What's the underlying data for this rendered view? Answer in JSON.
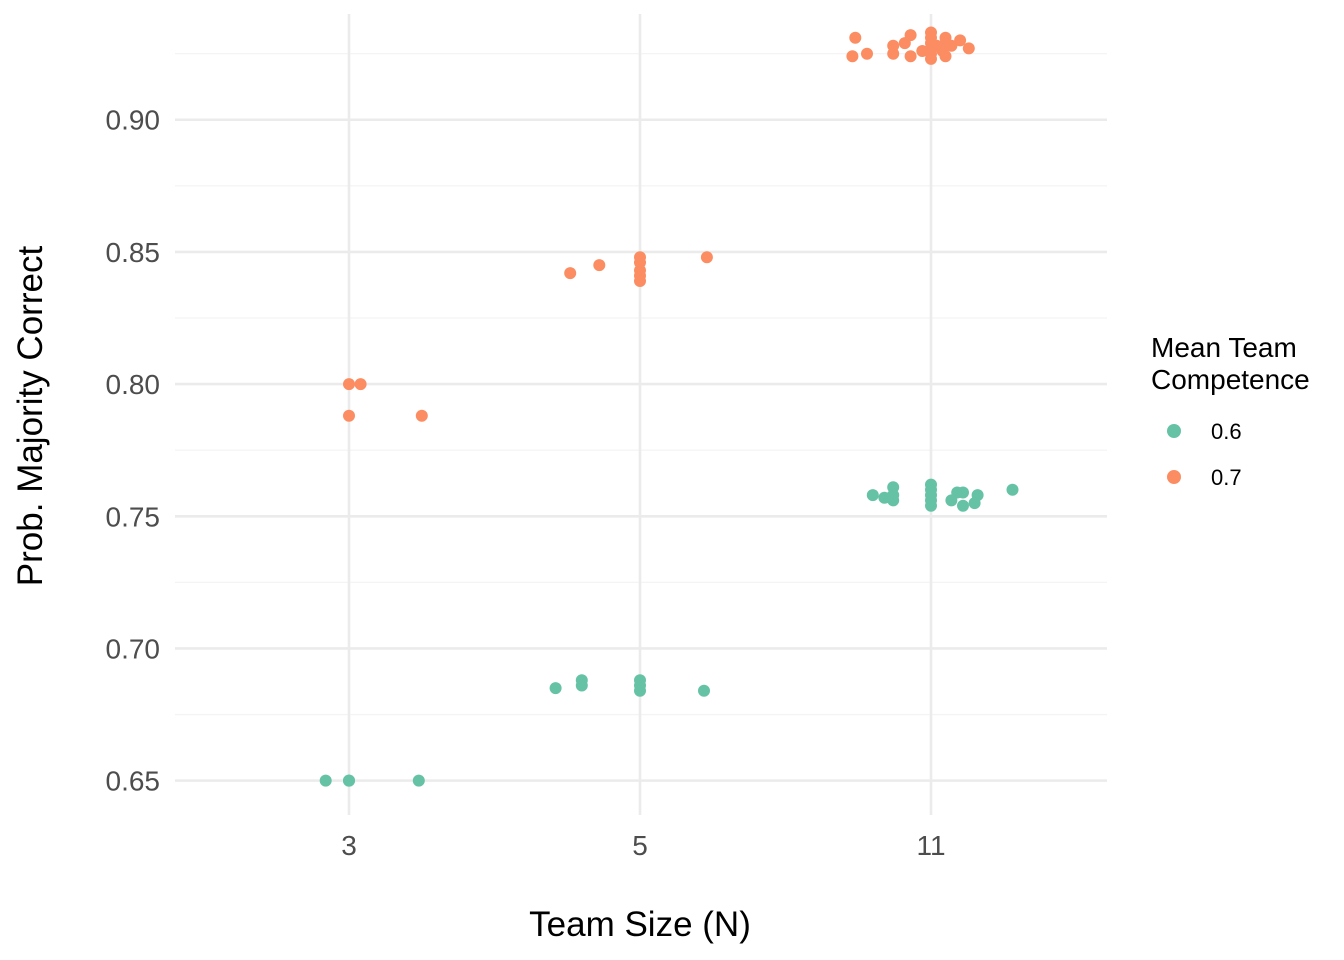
{
  "chart_data": {
    "type": "scatter",
    "title": "",
    "xlabel": "Team Size (N)",
    "ylabel": "Prob. Majority Correct",
    "x_categories": [
      "3",
      "5",
      "11"
    ],
    "ylim": [
      0.637,
      0.94
    ],
    "y_ticks": [
      0.65,
      0.7,
      0.75,
      0.8,
      0.85,
      0.9
    ],
    "y_tick_labels": [
      "0.65",
      "0.70",
      "0.75",
      "0.80",
      "0.85",
      "0.90"
    ],
    "grid": true,
    "jitter": "horizontal jitter around each team size category",
    "legend": {
      "title_lines": [
        "Mean Team",
        "Competence"
      ],
      "position": "right",
      "entries": [
        {
          "label": "0.6",
          "color": "#66c2a5"
        },
        {
          "label": "0.7",
          "color": "#fc8d62"
        }
      ]
    },
    "series": [
      {
        "name": "0.6",
        "color": "#66c2a5",
        "points": [
          {
            "x": "3",
            "offset": -0.08,
            "y": 0.65
          },
          {
            "x": "3",
            "offset": 0.0,
            "y": 0.65
          },
          {
            "x": "3",
            "offset": 0.0,
            "y": 0.65
          },
          {
            "x": "3",
            "offset": 0.24,
            "y": 0.65
          },
          {
            "x": "5",
            "offset": -0.29,
            "y": 0.685
          },
          {
            "x": "5",
            "offset": -0.2,
            "y": 0.686
          },
          {
            "x": "5",
            "offset": -0.2,
            "y": 0.688
          },
          {
            "x": "5",
            "offset": 0.0,
            "y": 0.684
          },
          {
            "x": "5",
            "offset": 0.0,
            "y": 0.686
          },
          {
            "x": "5",
            "offset": 0.0,
            "y": 0.688
          },
          {
            "x": "5",
            "offset": 0.22,
            "y": 0.684
          },
          {
            "x": "11",
            "offset": -0.2,
            "y": 0.758
          },
          {
            "x": "11",
            "offset": -0.16,
            "y": 0.757
          },
          {
            "x": "11",
            "offset": -0.14,
            "y": 0.757
          },
          {
            "x": "11",
            "offset": -0.13,
            "y": 0.756
          },
          {
            "x": "11",
            "offset": -0.13,
            "y": 0.758
          },
          {
            "x": "11",
            "offset": -0.13,
            "y": 0.761
          },
          {
            "x": "11",
            "offset": 0.0,
            "y": 0.754
          },
          {
            "x": "11",
            "offset": 0.0,
            "y": 0.756
          },
          {
            "x": "11",
            "offset": 0.0,
            "y": 0.758
          },
          {
            "x": "11",
            "offset": 0.0,
            "y": 0.76
          },
          {
            "x": "11",
            "offset": 0.0,
            "y": 0.762
          },
          {
            "x": "11",
            "offset": 0.07,
            "y": 0.756
          },
          {
            "x": "11",
            "offset": 0.09,
            "y": 0.759
          },
          {
            "x": "11",
            "offset": 0.11,
            "y": 0.754
          },
          {
            "x": "11",
            "offset": 0.11,
            "y": 0.759
          },
          {
            "x": "11",
            "offset": 0.15,
            "y": 0.755
          },
          {
            "x": "11",
            "offset": 0.16,
            "y": 0.758
          },
          {
            "x": "11",
            "offset": 0.28,
            "y": 0.76
          }
        ]
      },
      {
        "name": "0.7",
        "color": "#fc8d62",
        "points": [
          {
            "x": "3",
            "offset": 0.0,
            "y": 0.8
          },
          {
            "x": "3",
            "offset": 0.04,
            "y": 0.8
          },
          {
            "x": "3",
            "offset": 0.0,
            "y": 0.788
          },
          {
            "x": "3",
            "offset": 0.25,
            "y": 0.788
          },
          {
            "x": "5",
            "offset": -0.24,
            "y": 0.842
          },
          {
            "x": "5",
            "offset": -0.14,
            "y": 0.845
          },
          {
            "x": "5",
            "offset": 0.0,
            "y": 0.839
          },
          {
            "x": "5",
            "offset": 0.0,
            "y": 0.841
          },
          {
            "x": "5",
            "offset": 0.0,
            "y": 0.843
          },
          {
            "x": "5",
            "offset": 0.0,
            "y": 0.846
          },
          {
            "x": "5",
            "offset": 0.0,
            "y": 0.848
          },
          {
            "x": "5",
            "offset": 0.23,
            "y": 0.848
          },
          {
            "x": "11",
            "offset": -0.27,
            "y": 0.924
          },
          {
            "x": "11",
            "offset": -0.26,
            "y": 0.931
          },
          {
            "x": "11",
            "offset": -0.22,
            "y": 0.925
          },
          {
            "x": "11",
            "offset": -0.13,
            "y": 0.925
          },
          {
            "x": "11",
            "offset": -0.13,
            "y": 0.928
          },
          {
            "x": "11",
            "offset": -0.09,
            "y": 0.929
          },
          {
            "x": "11",
            "offset": -0.07,
            "y": 0.932
          },
          {
            "x": "11",
            "offset": -0.07,
            "y": 0.924
          },
          {
            "x": "11",
            "offset": -0.03,
            "y": 0.926
          },
          {
            "x": "11",
            "offset": 0.0,
            "y": 0.923
          },
          {
            "x": "11",
            "offset": 0.0,
            "y": 0.925
          },
          {
            "x": "11",
            "offset": 0.0,
            "y": 0.927
          },
          {
            "x": "11",
            "offset": 0.0,
            "y": 0.929
          },
          {
            "x": "11",
            "offset": 0.0,
            "y": 0.931
          },
          {
            "x": "11",
            "offset": 0.0,
            "y": 0.933
          },
          {
            "x": "11",
            "offset": 0.02,
            "y": 0.928
          },
          {
            "x": "11",
            "offset": 0.04,
            "y": 0.926
          },
          {
            "x": "11",
            "offset": 0.05,
            "y": 0.931
          },
          {
            "x": "11",
            "offset": 0.05,
            "y": 0.924
          },
          {
            "x": "11",
            "offset": 0.05,
            "y": 0.929
          },
          {
            "x": "11",
            "offset": 0.07,
            "y": 0.928
          },
          {
            "x": "11",
            "offset": 0.1,
            "y": 0.93
          },
          {
            "x": "11",
            "offset": 0.13,
            "y": 0.927
          }
        ]
      }
    ]
  }
}
